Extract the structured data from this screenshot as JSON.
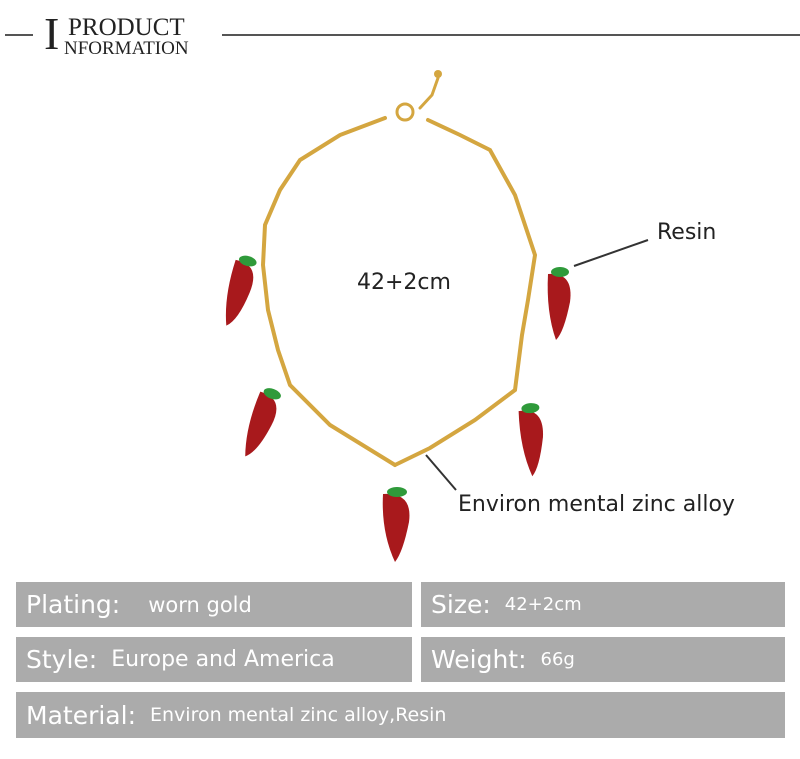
{
  "header": {
    "initial": "I",
    "line1": "PRODUCT",
    "line2": "NFORMATION",
    "logo_text": "PRODUCT INFORMATION"
  },
  "annotations": {
    "size": "42+2cm",
    "resin": "Resin",
    "alloy": "Environ mental zinc alloy"
  },
  "specs": [
    {
      "key": "Plating:",
      "value": "worn gold"
    },
    {
      "key": "Size:",
      "value": "42+2cm"
    },
    {
      "key": "Style:",
      "value": "Europe and America"
    },
    {
      "key": "Weight:",
      "value": "66g"
    },
    {
      "key": "Material:",
      "value": "Environ mental zinc alloy,Resin"
    }
  ],
  "colors": {
    "gold": "#d4a640",
    "chili": "#a8191c",
    "stem": "#2f9a3a",
    "box": "#ababab"
  }
}
